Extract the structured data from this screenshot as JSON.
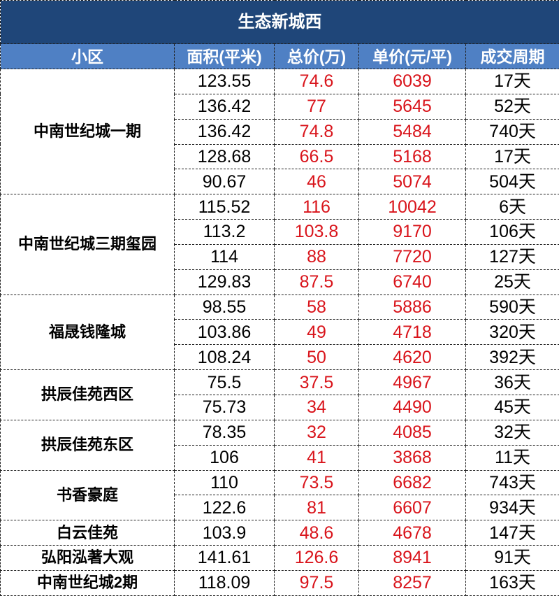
{
  "title": "生态新城西",
  "headers": [
    "小区",
    "面积(平米)",
    "总价(万)",
    "单价(元/平)",
    "成交周期"
  ],
  "colors": {
    "title_bg": "#1f4679",
    "header_bg": "#4f80c4",
    "price_text": "#d9141b"
  },
  "groups": [
    {
      "name": "中南世纪城一期",
      "rows": [
        [
          "123.55",
          "74.6",
          "6039",
          "17天"
        ],
        [
          "136.42",
          "77",
          "5645",
          "52天"
        ],
        [
          "136.42",
          "74.8",
          "5484",
          "740天"
        ],
        [
          "128.68",
          "66.5",
          "5168",
          "17天"
        ],
        [
          "90.67",
          "46",
          "5074",
          "504天"
        ]
      ]
    },
    {
      "name": "中南世纪城三期玺园",
      "rows": [
        [
          "115.52",
          "116",
          "10042",
          "6天"
        ],
        [
          "113.2",
          "103.8",
          "9170",
          "106天"
        ],
        [
          "114",
          "88",
          "7720",
          "127天"
        ],
        [
          "129.83",
          "87.5",
          "6740",
          "25天"
        ]
      ]
    },
    {
      "name": "福晟钱隆城",
      "rows": [
        [
          "98.55",
          "58",
          "5886",
          "590天"
        ],
        [
          "103.86",
          "49",
          "4718",
          "320天"
        ],
        [
          "108.24",
          "50",
          "4620",
          "392天"
        ]
      ]
    },
    {
      "name": "拱辰佳苑西区",
      "rows": [
        [
          "75.5",
          "37.5",
          "4967",
          "36天"
        ],
        [
          "75.73",
          "34",
          "4490",
          "45天"
        ]
      ]
    },
    {
      "name": "拱辰佳苑东区",
      "rows": [
        [
          "78.35",
          "32",
          "4085",
          "32天"
        ],
        [
          "106",
          "41",
          "3868",
          "11天"
        ]
      ]
    },
    {
      "name": "书香豪庭",
      "rows": [
        [
          "110",
          "73.5",
          "6682",
          "743天"
        ],
        [
          "122.6",
          "81",
          "6607",
          "934天"
        ]
      ]
    },
    {
      "name": "白云佳苑",
      "rows": [
        [
          "103.9",
          "48.6",
          "4678",
          "147天"
        ]
      ]
    },
    {
      "name": "弘阳泓著大观",
      "rows": [
        [
          "141.61",
          "126.6",
          "8941",
          "91天"
        ]
      ]
    },
    {
      "name": "中南世纪城2期",
      "rows": [
        [
          "118.09",
          "97.5",
          "8257",
          "163天"
        ]
      ]
    }
  ]
}
